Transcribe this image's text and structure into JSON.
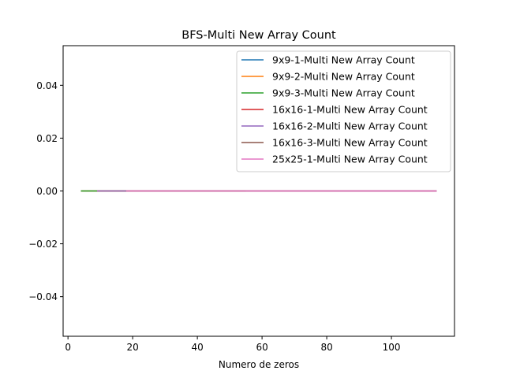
{
  "chart_data": {
    "type": "line",
    "title": "BFS-Multi New Array Count",
    "xlabel": "Numero de zeros",
    "ylabel": "",
    "xlim": [
      -1.5,
      119.5
    ],
    "ylim": [
      -0.055,
      0.055
    ],
    "xticks": [
      0,
      20,
      40,
      60,
      80,
      100
    ],
    "yticks": [
      -0.04,
      -0.02,
      0.0,
      0.02,
      0.04
    ],
    "ytick_labels": [
      "−0.04",
      "−0.02",
      "0.00",
      "0.02",
      "0.04"
    ],
    "legend_position": "top-right",
    "series": [
      {
        "name": "9x9-1-Multi New Array Count",
        "color": "#1f77b4",
        "x": [
          4,
          55
        ],
        "y": [
          0,
          0
        ]
      },
      {
        "name": "9x9-2-Multi New Array Count",
        "color": "#ff7f0e",
        "x": [
          4,
          55
        ],
        "y": [
          0,
          0
        ]
      },
      {
        "name": "9x9-3-Multi New Array Count",
        "color": "#2ca02c",
        "x": [
          4,
          55
        ],
        "y": [
          0,
          0
        ]
      },
      {
        "name": "16x16-1-Multi New Array Count",
        "color": "#d62728",
        "x": [
          9,
          114
        ],
        "y": [
          0,
          0
        ]
      },
      {
        "name": "16x16-2-Multi New Array Count",
        "color": "#9467bd",
        "x": [
          9,
          114
        ],
        "y": [
          0,
          0
        ]
      },
      {
        "name": "16x16-3-Multi New Array Count",
        "color": "#8c564b",
        "x": [
          18,
          114
        ],
        "y": [
          0,
          0
        ]
      },
      {
        "name": "25x25-1-Multi New Array Count",
        "color": "#e377c2",
        "x": [
          18,
          114
        ],
        "y": [
          0,
          0
        ]
      }
    ]
  }
}
